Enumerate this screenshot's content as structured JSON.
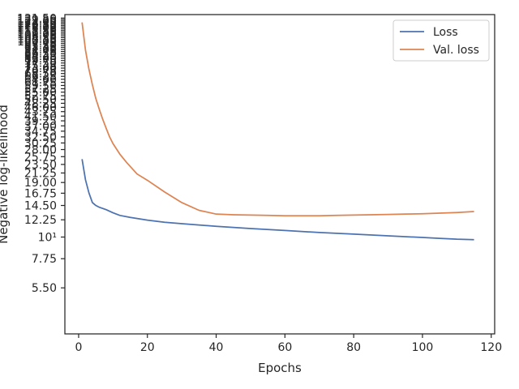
{
  "chart_data": {
    "type": "line",
    "title": "",
    "xlabel": "Epochs",
    "ylabel": "Negative log-likelihood",
    "yscale": "log",
    "xlim": [
      -4,
      121
    ],
    "ylim": [
      3.2,
      137
    ],
    "x_ticks": [
      0,
      20,
      40,
      60,
      80,
      100,
      120
    ],
    "x_tick_labels": [
      "0",
      "20",
      "40",
      "60",
      "80",
      "100",
      "120"
    ],
    "y_ticks": [
      5.5,
      7.75,
      10,
      12.25,
      14.5,
      16.75,
      19.0,
      21.25,
      23.5,
      25.75,
      28.0,
      30.25,
      32.5,
      34.75,
      37.0,
      39.25,
      41.5,
      43.75,
      46.0,
      48.25,
      50.5,
      52.75,
      55.0,
      57.25,
      59.5,
      61.75,
      64.0,
      66.25,
      68.5,
      70.75,
      73.0,
      75.25,
      77.5,
      79.75,
      82.0,
      84.25,
      86.5,
      88.75,
      91.0,
      93.25,
      95.5,
      97.75,
      100.0,
      102.25,
      104.5,
      106.75,
      109.0,
      111.25,
      113.5,
      115.75,
      118.0,
      120.25,
      122.5,
      124.75,
      127.0,
      129.25,
      131.5
    ],
    "y_tick_labels": [
      "5.50",
      "7.75",
      "10¹",
      "12.25",
      "14.50",
      "16.75",
      "19.00",
      "21.25",
      "23.50",
      "25.75",
      "28.00",
      "30.25",
      "32.50",
      "34.75",
      "37.00",
      "39.25",
      "41.50",
      "43.75",
      "46.00",
      "48.25",
      "50.50",
      "52.75",
      "55.00",
      "57.25",
      "59.50",
      "61.75",
      "64.00",
      "66.25",
      "68.50",
      "70.75",
      "73.00",
      "75.25",
      "77.50",
      "79.75",
      "82.00",
      "84.25",
      "86.50",
      "88.75",
      "91.00",
      "93.25",
      "95.50",
      "97.75",
      "100.00",
      "102.25",
      "104.50",
      "106.75",
      "109.00",
      "111.25",
      "113.50",
      "115.75",
      "118.00",
      "120.25",
      "122.50",
      "124.75",
      "127.00",
      "129.25",
      "131.50"
    ],
    "grid": false,
    "legend_position": "upper right",
    "series": [
      {
        "name": "Loss",
        "color": "#4c72b0",
        "x": [
          1,
          2,
          3,
          4,
          5,
          6,
          8,
          10,
          12,
          15,
          20,
          25,
          30,
          40,
          50,
          60,
          70,
          80,
          90,
          100,
          105,
          110,
          115
        ],
        "y": [
          25.0,
          19.6,
          16.8,
          15.0,
          14.5,
          14.2,
          13.8,
          13.3,
          12.9,
          12.6,
          12.2,
          11.9,
          11.7,
          11.35,
          11.05,
          10.8,
          10.55,
          10.35,
          10.15,
          9.95,
          9.85,
          9.75,
          9.7
        ]
      },
      {
        "name": "Val. loss",
        "color": "#dd8452",
        "x": [
          1,
          2,
          3,
          4,
          5,
          6,
          7,
          8,
          9,
          10,
          12,
          14,
          17,
          20,
          25,
          30,
          35,
          40,
          45,
          50,
          55,
          60,
          65,
          70,
          75,
          80,
          85,
          90,
          95,
          100,
          105,
          110,
          115
        ],
        "y": [
          125.0,
          90.0,
          72.0,
          60.0,
          51.0,
          45.0,
          40.0,
          36.0,
          32.5,
          30.0,
          26.5,
          24.0,
          21.0,
          19.5,
          17.0,
          15.0,
          13.7,
          13.1,
          13.0,
          12.95,
          12.9,
          12.85,
          12.85,
          12.85,
          12.9,
          12.95,
          13.0,
          13.05,
          13.1,
          13.15,
          13.25,
          13.35,
          13.5
        ]
      }
    ]
  }
}
